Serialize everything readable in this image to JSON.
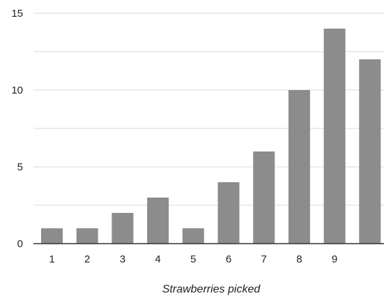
{
  "chart_data": {
    "type": "bar",
    "title": "",
    "xlabel": "Strawberries picked",
    "ylabel": "",
    "categories": [
      "1",
      "2",
      "3",
      "4",
      "5",
      "6",
      "7",
      "8",
      "9",
      ""
    ],
    "values": [
      1,
      1,
      2,
      3,
      1,
      4,
      6,
      10,
      14,
      12
    ],
    "ylim": [
      0,
      15
    ],
    "yticks": [
      0,
      5,
      10,
      15
    ],
    "grid": "horizontal",
    "legend": "none",
    "colors": {
      "bar": "#8c8c8c",
      "grid": "#d9d9d9",
      "baseline": "#333333"
    }
  }
}
